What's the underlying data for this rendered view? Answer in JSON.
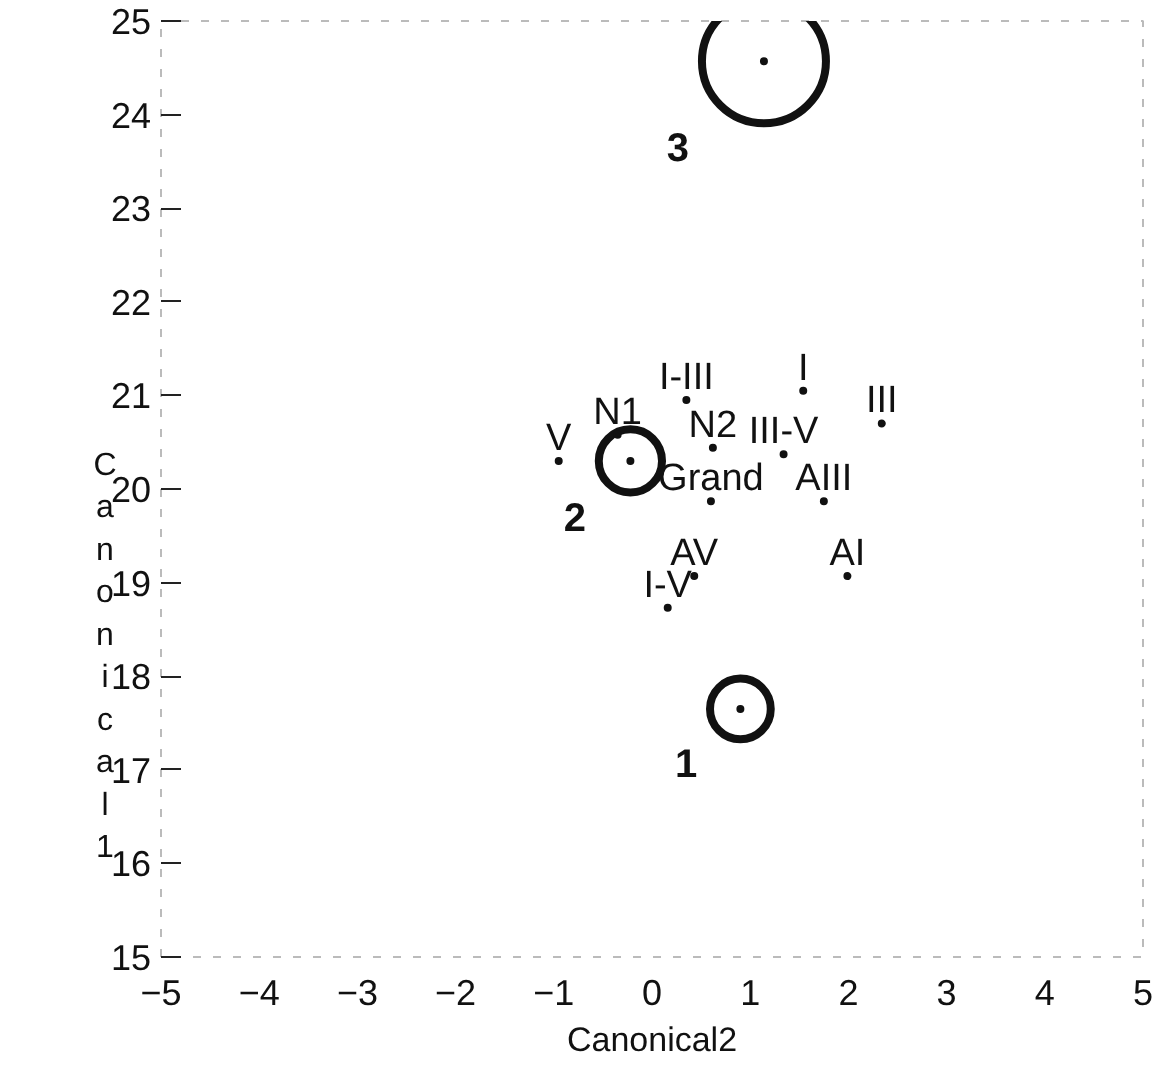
{
  "chart_data": {
    "type": "bubble",
    "xlabel": "Canonical2",
    "ylabel": "Canonical1",
    "xlim": [
      -5,
      5
    ],
    "ylim": [
      15,
      25
    ],
    "xticks": [
      -5,
      -4,
      -3,
      -2,
      -1,
      0,
      1,
      2,
      3,
      4,
      5
    ],
    "yticks": [
      15,
      16,
      17,
      18,
      19,
      20,
      21,
      22,
      23,
      24,
      25
    ],
    "grid": false,
    "legend": false,
    "series": [
      {
        "name": "1",
        "color": "#111111",
        "x": [
          0.9
        ],
        "values": [
          17.65
        ],
        "sizes": [
          0.24
        ]
      },
      {
        "name": "2",
        "color": "#111111",
        "x": [
          -0.22
        ],
        "values": [
          20.3
        ],
        "sizes": [
          0.26
        ]
      },
      {
        "name": "3",
        "color": "#111111",
        "x": [
          1.14
        ],
        "values": [
          24.57
        ],
        "sizes": [
          1
        ]
      },
      {
        "type": "scatter",
        "name": "I",
        "color": "#111111",
        "x": [
          1.54
        ],
        "values": [
          21.05
        ]
      },
      {
        "type": "scatter",
        "name": "III",
        "color": "#111111",
        "x": [
          2.34
        ],
        "values": [
          20.7
        ]
      },
      {
        "type": "scatter",
        "name": "I-III",
        "color": "#111111",
        "x": [
          0.35
        ],
        "values": [
          20.95
        ]
      },
      {
        "type": "scatter",
        "name": "N2",
        "color": "#111111",
        "x": [
          0.62
        ],
        "values": [
          20.44
        ]
      },
      {
        "type": "scatter",
        "name": "III-V",
        "color": "#111111",
        "x": [
          1.34
        ],
        "values": [
          20.37
        ]
      },
      {
        "type": "scatter",
        "name": "V",
        "color": "#111111",
        "x": [
          -0.95
        ],
        "values": [
          20.3
        ]
      },
      {
        "type": "scatter",
        "name": "N1",
        "color": "#111111",
        "x": [
          -0.35
        ],
        "values": [
          20.58
        ]
      },
      {
        "type": "scatter",
        "name": "Grand",
        "color": "#111111",
        "x": [
          0.6
        ],
        "values": [
          19.87
        ]
      },
      {
        "type": "scatter",
        "name": "AIII",
        "color": "#111111",
        "x": [
          1.75
        ],
        "values": [
          19.87
        ]
      },
      {
        "type": "scatter",
        "name": "AV",
        "color": "#111111",
        "x": [
          0.43
        ],
        "values": [
          19.07
        ]
      },
      {
        "type": "scatter",
        "name": "I-V",
        "color": "#111111",
        "x": [
          0.16
        ],
        "values": [
          18.73
        ]
      },
      {
        "type": "scatter",
        "name": "AI",
        "color": "#111111",
        "x": [
          1.99
        ],
        "values": [
          19.07
        ]
      }
    ]
  }
}
